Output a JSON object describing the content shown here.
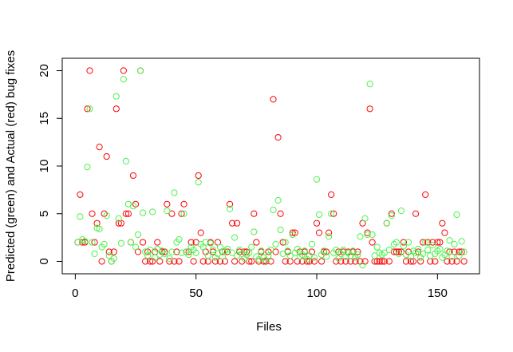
{
  "chart_data": {
    "type": "scatter",
    "x_label": "Files",
    "y_label": "Predicted (green) and Actual (red) bug fixes",
    "x": [
      1,
      2,
      3,
      4,
      5,
      6,
      7,
      8,
      9,
      10,
      11,
      12,
      13,
      14,
      15,
      16,
      17,
      18,
      19,
      20,
      21,
      22,
      23,
      24,
      25,
      26,
      27,
      28,
      29,
      30,
      31,
      32,
      33,
      34,
      35,
      36,
      37,
      38,
      39,
      40,
      41,
      42,
      43,
      44,
      45,
      46,
      47,
      48,
      49,
      50,
      51,
      52,
      53,
      54,
      55,
      56,
      57,
      58,
      59,
      60,
      61,
      62,
      63,
      64,
      65,
      66,
      67,
      68,
      69,
      70,
      71,
      72,
      73,
      74,
      75,
      76,
      77,
      78,
      79,
      80,
      81,
      82,
      83,
      84,
      85,
      86,
      87,
      88,
      89,
      90,
      91,
      92,
      93,
      94,
      95,
      96,
      97,
      98,
      99,
      100,
      101,
      102,
      103,
      104,
      105,
      106,
      107,
      108,
      109,
      110,
      111,
      112,
      113,
      114,
      115,
      116,
      117,
      118,
      119,
      120,
      121,
      122,
      123,
      124,
      125,
      126,
      127,
      128,
      129,
      130,
      131,
      132,
      133,
      134,
      135,
      136,
      137,
      138,
      139,
      140,
      141,
      142,
      143,
      144,
      145,
      146,
      147,
      148,
      149,
      150,
      151,
      152,
      153,
      154,
      155,
      156,
      157,
      158,
      159,
      160,
      161
    ],
    "series": [
      {
        "color": "#ff0000",
        "values": [
          2,
          7,
          2,
          2,
          16,
          20,
          5,
          2,
          4,
          12,
          0,
          5,
          11,
          1,
          0,
          1,
          16,
          4,
          4,
          20,
          5,
          5,
          2,
          9,
          6,
          1,
          20,
          2,
          0,
          1,
          0,
          0,
          1,
          2,
          0,
          1,
          1,
          6,
          0,
          5,
          0,
          1,
          0,
          5,
          6,
          1,
          1,
          2,
          0,
          2,
          9,
          3,
          0,
          1,
          0,
          2,
          1,
          0,
          2,
          0,
          1,
          0,
          1,
          6,
          4,
          0,
          4,
          1,
          0,
          1,
          1,
          0,
          0,
          5,
          2,
          0,
          1,
          0,
          0,
          1,
          0,
          17,
          1,
          13,
          5,
          2,
          0,
          1,
          0,
          3,
          3,
          0,
          1,
          0,
          1,
          0,
          0,
          1,
          0,
          4,
          3,
          0,
          1,
          1,
          3,
          7,
          5,
          0,
          1,
          0,
          1,
          0,
          1,
          0,
          1,
          0,
          1,
          0,
          4,
          0,
          3,
          16,
          2,
          0,
          0,
          0,
          0,
          0,
          4,
          0,
          5,
          1,
          1,
          1,
          1,
          2,
          0,
          1,
          0,
          0,
          5,
          1,
          0,
          2,
          7,
          2,
          0,
          2,
          0,
          2,
          2,
          4,
          3,
          0,
          1,
          0,
          1,
          0,
          1,
          1,
          0
        ]
      },
      {
        "color": "#4df24d",
        "values": [
          2,
          4.7,
          2.3,
          2.1,
          9.9,
          16,
          2,
          0.8,
          3.5,
          3.4,
          1.5,
          1.8,
          4.8,
          0.6,
          0,
          0.3,
          17.3,
          4.5,
          1.9,
          19.1,
          10.5,
          6,
          2,
          5.8,
          1.5,
          2.8,
          20,
          5.1,
          1,
          0.6,
          1.2,
          5.2,
          0.4,
          1.3,
          0.7,
          1.1,
          0.8,
          5.3,
          0.3,
          1,
          7.2,
          2,
          2.3,
          0.9,
          5,
          1,
          0.7,
          1.5,
          1.2,
          0.9,
          8.3,
          1.8,
          1.5,
          2,
          0.6,
          1.9,
          1.2,
          0.4,
          0.8,
          1.5,
          0.5,
          1.1,
          1.3,
          5.5,
          0.9,
          2.5,
          0.6,
          1.2,
          0.8,
          0.3,
          0.7,
          0.9,
          1.5,
          3.1,
          0.5,
          0.2,
          1.1,
          0.4,
          0.1,
          0.6,
          1.2,
          5.4,
          1.8,
          6.4,
          3.3,
          0.8,
          2,
          1.1,
          0.6,
          2.8,
          0.9,
          1.3,
          0.5,
          0.7,
          1.1,
          0.2,
          0.6,
          1.8,
          0.4,
          8.6,
          4.9,
          0.7,
          1.1,
          0.5,
          2.6,
          5,
          0.9,
          1.2,
          0.3,
          0.8,
          1.2,
          0.5,
          0.9,
          0.6,
          1.1,
          0.4,
          0.7,
          2.6,
          -0.4,
          4.5,
          2.8,
          18.6,
          2.8,
          0.6,
          1.5,
          0.9,
          0.7,
          0.9,
          4,
          1.2,
          4.8,
          1.8,
          2,
          0.8,
          5.3,
          1.6,
          0.7,
          2,
          0.5,
          1.1,
          0.9,
          1.3,
          0.4,
          0.8,
          2,
          1.2,
          0.6,
          1.7,
          0.8,
          1.1,
          1.3,
          0.4,
          0.7,
          1.1,
          2.2,
          0.5,
          1.8,
          4.9,
          0.6,
          2.1,
          1
        ]
      }
    ],
    "xlim": [
      -5.4,
      167.4
    ],
    "ylim": [
      -1.3,
      21.3
    ],
    "xticks": [
      0,
      50,
      100,
      150
    ],
    "yticks": [
      0,
      5,
      10,
      15,
      20
    ]
  }
}
